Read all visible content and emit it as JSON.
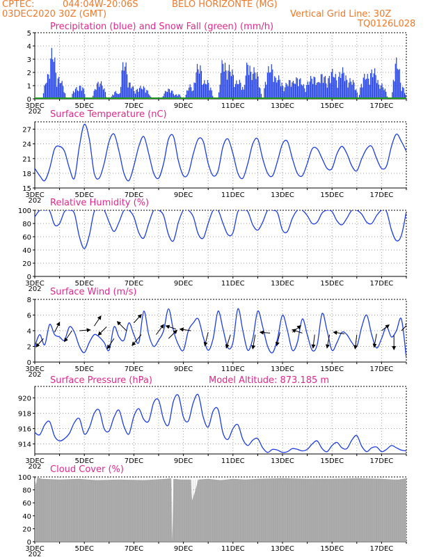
{
  "header": {
    "source": "CPTEC:",
    "coords": "044:04W-20:06S",
    "location": "BELO HORIZONTE (MG)",
    "run": "03DEC2020 30Z (GMT)",
    "grid_note": "Vertical Grid Line: 30Z",
    "model_code": "TQ0126L028"
  },
  "x_axis": {
    "ticks": [
      "3DEC",
      "5DEC",
      "7DEC",
      "9DEC",
      "11DEC",
      "13DEC",
      "15DEC",
      "17DEC"
    ],
    "year_fragment": "202",
    "day_range": [
      3,
      18
    ]
  },
  "colors": {
    "line": "#1c3ce6",
    "bar": "#1c3ce6",
    "snow": "#1f9a1f",
    "cloud": "#a8a8a8",
    "title": "#e0288c",
    "header": "#f07828"
  },
  "chart_data": [
    {
      "type": "bar",
      "title": "Precipitation (blue) and Snow Fall (green) (mm/h)",
      "ylim": [
        0,
        5
      ],
      "yticks": [
        "0",
        "1",
        "2",
        "3",
        "4",
        "5"
      ],
      "grid": true,
      "events": [
        {
          "day": 3.55,
          "peak": 2.0,
          "width": 0.25
        },
        {
          "day": 3.7,
          "peak": 4.0,
          "width": 0.2
        },
        {
          "day": 3.95,
          "peak": 1.7,
          "width": 0.3
        },
        {
          "day": 4.65,
          "peak": 0.9,
          "width": 0.2
        },
        {
          "day": 4.85,
          "peak": 1.1,
          "width": 0.2
        },
        {
          "day": 5.6,
          "peak": 1.4,
          "width": 0.3
        },
        {
          "day": 6.25,
          "peak": 0.6,
          "width": 0.2
        },
        {
          "day": 6.6,
          "peak": 3.1,
          "width": 0.2
        },
        {
          "day": 6.8,
          "peak": 1.3,
          "width": 0.3
        },
        {
          "day": 7.3,
          "peak": 1.0,
          "width": 0.4
        },
        {
          "day": 8.4,
          "peak": 0.8,
          "width": 0.3
        },
        {
          "day": 8.75,
          "peak": 0.4,
          "width": 0.2
        },
        {
          "day": 9.25,
          "peak": 1.1,
          "width": 0.2
        },
        {
          "day": 9.6,
          "peak": 2.8,
          "width": 0.25
        },
        {
          "day": 9.9,
          "peak": 1.5,
          "width": 0.3
        },
        {
          "day": 10.6,
          "peak": 3.2,
          "width": 0.2
        },
        {
          "day": 10.85,
          "peak": 2.6,
          "width": 0.3
        },
        {
          "day": 11.2,
          "peak": 1.5,
          "width": 0.3
        },
        {
          "day": 11.6,
          "peak": 3.0,
          "width": 0.2
        },
        {
          "day": 11.85,
          "peak": 2.4,
          "width": 0.3
        },
        {
          "day": 12.5,
          "peak": 2.7,
          "width": 0.3
        },
        {
          "day": 12.8,
          "peak": 1.8,
          "width": 0.3
        },
        {
          "day": 13.3,
          "peak": 1.5,
          "width": 0.4
        },
        {
          "day": 13.6,
          "peak": 1.7,
          "width": 0.4
        },
        {
          "day": 14.2,
          "peak": 1.8,
          "width": 0.4
        },
        {
          "day": 14.6,
          "peak": 2.0,
          "width": 0.3
        },
        {
          "day": 15.0,
          "peak": 2.3,
          "width": 0.3
        },
        {
          "day": 15.4,
          "peak": 2.4,
          "width": 0.3
        },
        {
          "day": 15.75,
          "peak": 1.6,
          "width": 0.3
        },
        {
          "day": 16.35,
          "peak": 2.0,
          "width": 0.3
        },
        {
          "day": 16.65,
          "peak": 2.4,
          "width": 0.3
        },
        {
          "day": 16.95,
          "peak": 1.2,
          "width": 0.3
        },
        {
          "day": 17.6,
          "peak": 3.2,
          "width": 0.2
        },
        {
          "day": 17.8,
          "peak": 1.0,
          "width": 0.2
        }
      ]
    },
    {
      "type": "line",
      "title": "Surface Temperature (nC)",
      "ylim": [
        15,
        28.5
      ],
      "yticks": [
        "15",
        "18",
        "21",
        "24",
        "27"
      ],
      "ytick_values": [
        15,
        18,
        21,
        24,
        27
      ],
      "grid": true,
      "x": [
        3.0,
        3.2,
        3.4,
        3.6,
        3.8,
        4.0,
        4.2,
        4.4,
        4.6,
        4.8,
        5.0,
        5.2,
        5.4,
        5.6,
        5.8,
        6.0,
        6.2,
        6.4,
        6.6,
        6.8,
        7.0,
        7.2,
        7.4,
        7.6,
        7.8,
        8.0,
        8.2,
        8.4,
        8.6,
        8.8,
        9.0,
        9.2,
        9.4,
        9.6,
        9.8,
        10.0,
        10.2,
        10.4,
        10.6,
        10.8,
        11.0,
        11.2,
        11.4,
        11.6,
        11.8,
        12.0,
        12.2,
        12.4,
        12.6,
        12.8,
        13.0,
        13.2,
        13.4,
        13.6,
        13.8,
        14.0,
        14.2,
        14.4,
        14.6,
        14.8,
        15.0,
        15.2,
        15.4,
        15.6,
        15.8,
        16.0,
        16.2,
        16.4,
        16.6,
        16.8,
        17.0,
        17.2,
        17.4,
        17.6,
        17.8,
        18.0
      ],
      "y": [
        19.0,
        17.5,
        16.5,
        19.0,
        23.0,
        23.5,
        22.5,
        19.0,
        17.0,
        23.5,
        28.0,
        25.0,
        18.0,
        17.0,
        20.0,
        24.5,
        26.0,
        22.5,
        18.0,
        16.5,
        19.5,
        23.5,
        25.5,
        22.0,
        18.0,
        17.0,
        20.0,
        25.0,
        25.5,
        20.5,
        17.5,
        18.0,
        22.0,
        25.0,
        24.5,
        20.0,
        17.5,
        18.5,
        23.5,
        25.0,
        22.0,
        18.0,
        17.0,
        20.0,
        24.0,
        25.0,
        21.0,
        18.0,
        17.5,
        20.5,
        24.0,
        24.5,
        21.0,
        18.0,
        17.5,
        20.0,
        23.0,
        23.0,
        21.0,
        19.0,
        19.0,
        22.0,
        23.5,
        22.0,
        19.5,
        18.5,
        21.0,
        23.0,
        23.5,
        21.0,
        19.0,
        19.5,
        23.5,
        26.0,
        24.5,
        22.5
      ]
    },
    {
      "type": "line",
      "title": "Relative Humidity (%)",
      "ylim": [
        0,
        100
      ],
      "yticks": [
        "0",
        "20",
        "40",
        "60",
        "80",
        "100"
      ],
      "ytick_values": [
        0,
        20,
        40,
        60,
        80,
        100
      ],
      "grid": true,
      "x": [
        3.0,
        3.2,
        3.4,
        3.6,
        3.8,
        4.0,
        4.2,
        4.4,
        4.6,
        4.8,
        5.0,
        5.2,
        5.4,
        5.6,
        5.8,
        6.0,
        6.2,
        6.4,
        6.6,
        6.8,
        7.0,
        7.2,
        7.4,
        7.6,
        7.8,
        8.0,
        8.2,
        8.4,
        8.6,
        8.8,
        9.0,
        9.2,
        9.4,
        9.6,
        9.8,
        10.0,
        10.2,
        10.4,
        10.6,
        10.8,
        11.0,
        11.2,
        11.4,
        11.6,
        11.8,
        12.0,
        12.2,
        12.4,
        12.6,
        12.8,
        13.0,
        13.2,
        13.4,
        13.6,
        13.8,
        14.0,
        14.2,
        14.4,
        14.6,
        14.8,
        15.0,
        15.2,
        15.4,
        15.6,
        15.8,
        16.0,
        16.2,
        16.4,
        16.6,
        16.8,
        17.0,
        17.2,
        17.4,
        17.6,
        17.8,
        18.0
      ],
      "y": [
        90,
        100,
        100,
        99,
        78,
        80,
        98,
        100,
        95,
        60,
        42,
        62,
        98,
        100,
        100,
        82,
        68,
        82,
        100,
        100,
        90,
        66,
        58,
        80,
        100,
        100,
        92,
        63,
        54,
        82,
        100,
        100,
        90,
        64,
        58,
        80,
        100,
        100,
        80,
        63,
        66,
        98,
        100,
        98,
        78,
        70,
        82,
        100,
        100,
        96,
        70,
        68,
        88,
        100,
        100,
        92,
        80,
        82,
        96,
        100,
        98,
        84,
        78,
        88,
        100,
        100,
        94,
        82,
        80,
        92,
        100,
        98,
        70,
        54,
        62,
        98
      ]
    },
    {
      "type": "line",
      "title": "Surface Wind (m/s)",
      "ylim": [
        0,
        8
      ],
      "yticks": [
        "0",
        "2",
        "4",
        "6",
        "8"
      ],
      "ytick_values": [
        0,
        2,
        4,
        6,
        8
      ],
      "grid": true,
      "x": [
        3.0,
        3.2,
        3.4,
        3.6,
        3.8,
        4.0,
        4.2,
        4.4,
        4.6,
        4.8,
        5.0,
        5.2,
        5.4,
        5.6,
        5.8,
        6.0,
        6.2,
        6.4,
        6.6,
        6.8,
        7.0,
        7.2,
        7.4,
        7.6,
        7.8,
        8.0,
        8.2,
        8.4,
        8.6,
        8.8,
        9.0,
        9.2,
        9.4,
        9.6,
        9.8,
        10.0,
        10.2,
        10.4,
        10.6,
        10.8,
        11.0,
        11.2,
        11.4,
        11.6,
        11.8,
        12.0,
        12.2,
        12.4,
        12.6,
        12.8,
        13.0,
        13.2,
        13.4,
        13.6,
        13.8,
        14.0,
        14.2,
        14.4,
        14.6,
        14.8,
        15.0,
        15.2,
        15.4,
        15.6,
        15.8,
        16.0,
        16.2,
        16.4,
        16.6,
        16.8,
        17.0,
        17.2,
        17.4,
        17.6,
        17.8,
        18.0
      ],
      "y": [
        2.0,
        3.5,
        2.2,
        4.8,
        3.5,
        3.2,
        2.8,
        4.5,
        3.8,
        2.0,
        1.2,
        2.5,
        3.5,
        3.2,
        2.5,
        1.5,
        4.5,
        3.2,
        2.8,
        5.0,
        3.5,
        2.5,
        6.5,
        3.5,
        2.0,
        2.8,
        4.0,
        6.8,
        4.0,
        2.2,
        1.5,
        4.0,
        5.0,
        5.5,
        3.2,
        1.5,
        3.0,
        6.5,
        4.2,
        1.8,
        2.5,
        6.8,
        4.0,
        1.5,
        3.0,
        6.5,
        4.5,
        2.0,
        1.2,
        3.0,
        6.0,
        4.0,
        1.5,
        2.5,
        5.5,
        3.5,
        1.5,
        2.2,
        6.2,
        4.0,
        1.5,
        2.5,
        3.8,
        3.5,
        2.5,
        2.0,
        4.5,
        6.0,
        3.5,
        1.8,
        3.0,
        4.5,
        3.2,
        4.0,
        5.5,
        0.5
      ],
      "arrows": [
        {
          "day": 3.35,
          "y": 3.0,
          "u": -0.9,
          "v": -1.0
        },
        {
          "day": 3.8,
          "y": 3.8,
          "u": 0.6,
          "v": 1.2
        },
        {
          "day": 4.5,
          "y": 4.0,
          "u": -0.9,
          "v": -1.3
        },
        {
          "day": 4.8,
          "y": 4.0,
          "u": 1.3,
          "v": 0.1
        },
        {
          "day": 5.4,
          "y": 4.6,
          "u": 0.8,
          "v": 1.2
        },
        {
          "day": 5.9,
          "y": 4.5,
          "u": -1.0,
          "v": -1.0
        },
        {
          "day": 6.2,
          "y": 3.0,
          "u": -0.8,
          "v": -1.2
        },
        {
          "day": 6.7,
          "y": 4.0,
          "u": -1.1,
          "v": 1.1
        },
        {
          "day": 7.0,
          "y": 5.0,
          "u": 0.9,
          "v": 1.0
        },
        {
          "day": 7.3,
          "y": 3.5,
          "u": -1.1,
          "v": -1.3
        },
        {
          "day": 7.9,
          "y": 3.5,
          "u": 0.9,
          "v": 1.2
        },
        {
          "day": 8.4,
          "y": 3.0,
          "u": 1.0,
          "v": 1.0
        },
        {
          "day": 8.7,
          "y": 4.2,
          "u": -1.2,
          "v": 0.4
        },
        {
          "day": 9.3,
          "y": 4.0,
          "u": -1.3,
          "v": 0.2
        },
        {
          "day": 10.0,
          "y": 3.8,
          "u": -0.4,
          "v": -1.6
        },
        {
          "day": 10.9,
          "y": 3.5,
          "u": -0.5,
          "v": -1.6
        },
        {
          "day": 11.9,
          "y": 3.5,
          "u": -0.3,
          "v": -1.7
        },
        {
          "day": 12.5,
          "y": 3.7,
          "u": -1.2,
          "v": 0.1
        },
        {
          "day": 12.9,
          "y": 3.8,
          "u": -0.4,
          "v": -1.6
        },
        {
          "day": 13.4,
          "y": 3.8,
          "u": 1.0,
          "v": 0.8
        },
        {
          "day": 13.8,
          "y": 3.7,
          "u": -1.2,
          "v": 0.4
        },
        {
          "day": 14.3,
          "y": 3.5,
          "u": -0.2,
          "v": -1.6
        },
        {
          "day": 14.9,
          "y": 3.5,
          "u": -0.3,
          "v": -1.6
        },
        {
          "day": 15.5,
          "y": 3.6,
          "u": -1.3,
          "v": 0.2
        },
        {
          "day": 16.0,
          "y": 3.5,
          "u": -0.2,
          "v": -1.7
        },
        {
          "day": 16.8,
          "y": 3.6,
          "u": -0.3,
          "v": -1.6
        },
        {
          "day": 17.0,
          "y": 4.0,
          "u": 0.9,
          "v": 0.7
        },
        {
          "day": 17.5,
          "y": 3.4,
          "u": 0.0,
          "v": -1.7
        },
        {
          "day": 17.8,
          "y": 4.0,
          "u": 0.9,
          "v": 0.9
        }
      ]
    },
    {
      "type": "line",
      "title": "Surface Pressure (hPa)",
      "annotation": "Model Altitude: 873.185 m",
      "ylim": [
        912.7,
        921.5
      ],
      "yticks": [
        "914",
        "916",
        "918",
        "920"
      ],
      "ytick_values": [
        914,
        916,
        918,
        920
      ],
      "grid": true,
      "x": [
        3.0,
        3.2,
        3.4,
        3.6,
        3.8,
        4.0,
        4.2,
        4.4,
        4.6,
        4.8,
        5.0,
        5.2,
        5.4,
        5.6,
        5.8,
        6.0,
        6.2,
        6.4,
        6.6,
        6.8,
        7.0,
        7.2,
        7.4,
        7.6,
        7.8,
        8.0,
        8.2,
        8.4,
        8.6,
        8.8,
        9.0,
        9.2,
        9.4,
        9.6,
        9.8,
        10.0,
        10.2,
        10.4,
        10.6,
        10.8,
        11.0,
        11.2,
        11.4,
        11.6,
        11.8,
        12.0,
        12.2,
        12.4,
        12.6,
        12.8,
        13.0,
        13.2,
        13.4,
        13.6,
        13.8,
        14.0,
        14.2,
        14.4,
        14.6,
        14.8,
        15.0,
        15.2,
        15.4,
        15.6,
        15.8,
        16.0,
        16.2,
        16.4,
        16.6,
        16.8,
        17.0,
        17.2,
        17.4,
        17.6,
        17.8,
        18.0
      ],
      "y": [
        915.5,
        915.2,
        916.5,
        916.9,
        915.0,
        914.4,
        914.7,
        915.4,
        916.8,
        917.3,
        915.3,
        916.1,
        918.0,
        918.4,
        916.0,
        915.7,
        917.5,
        918.4,
        916.3,
        915.3,
        917.6,
        918.6,
        917.2,
        917.0,
        919.4,
        919.7,
        917.2,
        916.5,
        919.6,
        920.3,
        917.5,
        917.0,
        919.4,
        920.4,
        917.5,
        916.2,
        918.3,
        918.5,
        915.4,
        914.6,
        916.0,
        916.5,
        914.6,
        913.8,
        914.5,
        914.7,
        913.5,
        912.9,
        913.3,
        913.2,
        912.9,
        913.0,
        913.4,
        913.3,
        913.1,
        913.3,
        914.0,
        914.4,
        913.4,
        913.0,
        913.8,
        914.2,
        913.5,
        913.4,
        914.5,
        915.1,
        913.7,
        913.0,
        913.5,
        913.6,
        913.0,
        913.3,
        913.8,
        913.5,
        913.2,
        913.1
      ]
    },
    {
      "type": "area",
      "title": "Cloud Cover (%)",
      "ylim": [
        0,
        100
      ],
      "yticks": [
        "0",
        "20",
        "40",
        "60",
        "80",
        "100"
      ],
      "ytick_values": [
        0,
        20,
        40,
        60,
        80,
        100
      ],
      "grid": true,
      "x": [
        3.0,
        3.05,
        3.1,
        3.3,
        4.0,
        4.8,
        5.5,
        6.4,
        7.4,
        8.3,
        8.5,
        8.55,
        8.6,
        8.9,
        9.3,
        9.35,
        9.45,
        9.6,
        10.0,
        10.5,
        11.0,
        11.5,
        12.0,
        13.0,
        14.0,
        15.0,
        16.0,
        17.0,
        17.5,
        17.7,
        18.0
      ],
      "y": [
        98,
        88,
        99,
        97,
        96,
        97,
        95,
        96,
        95,
        97,
        98,
        0,
        97,
        96,
        96,
        64,
        75,
        96,
        97,
        95,
        97,
        96,
        97,
        98,
        97,
        97,
        98,
        97,
        96,
        96,
        98
      ]
    }
  ]
}
